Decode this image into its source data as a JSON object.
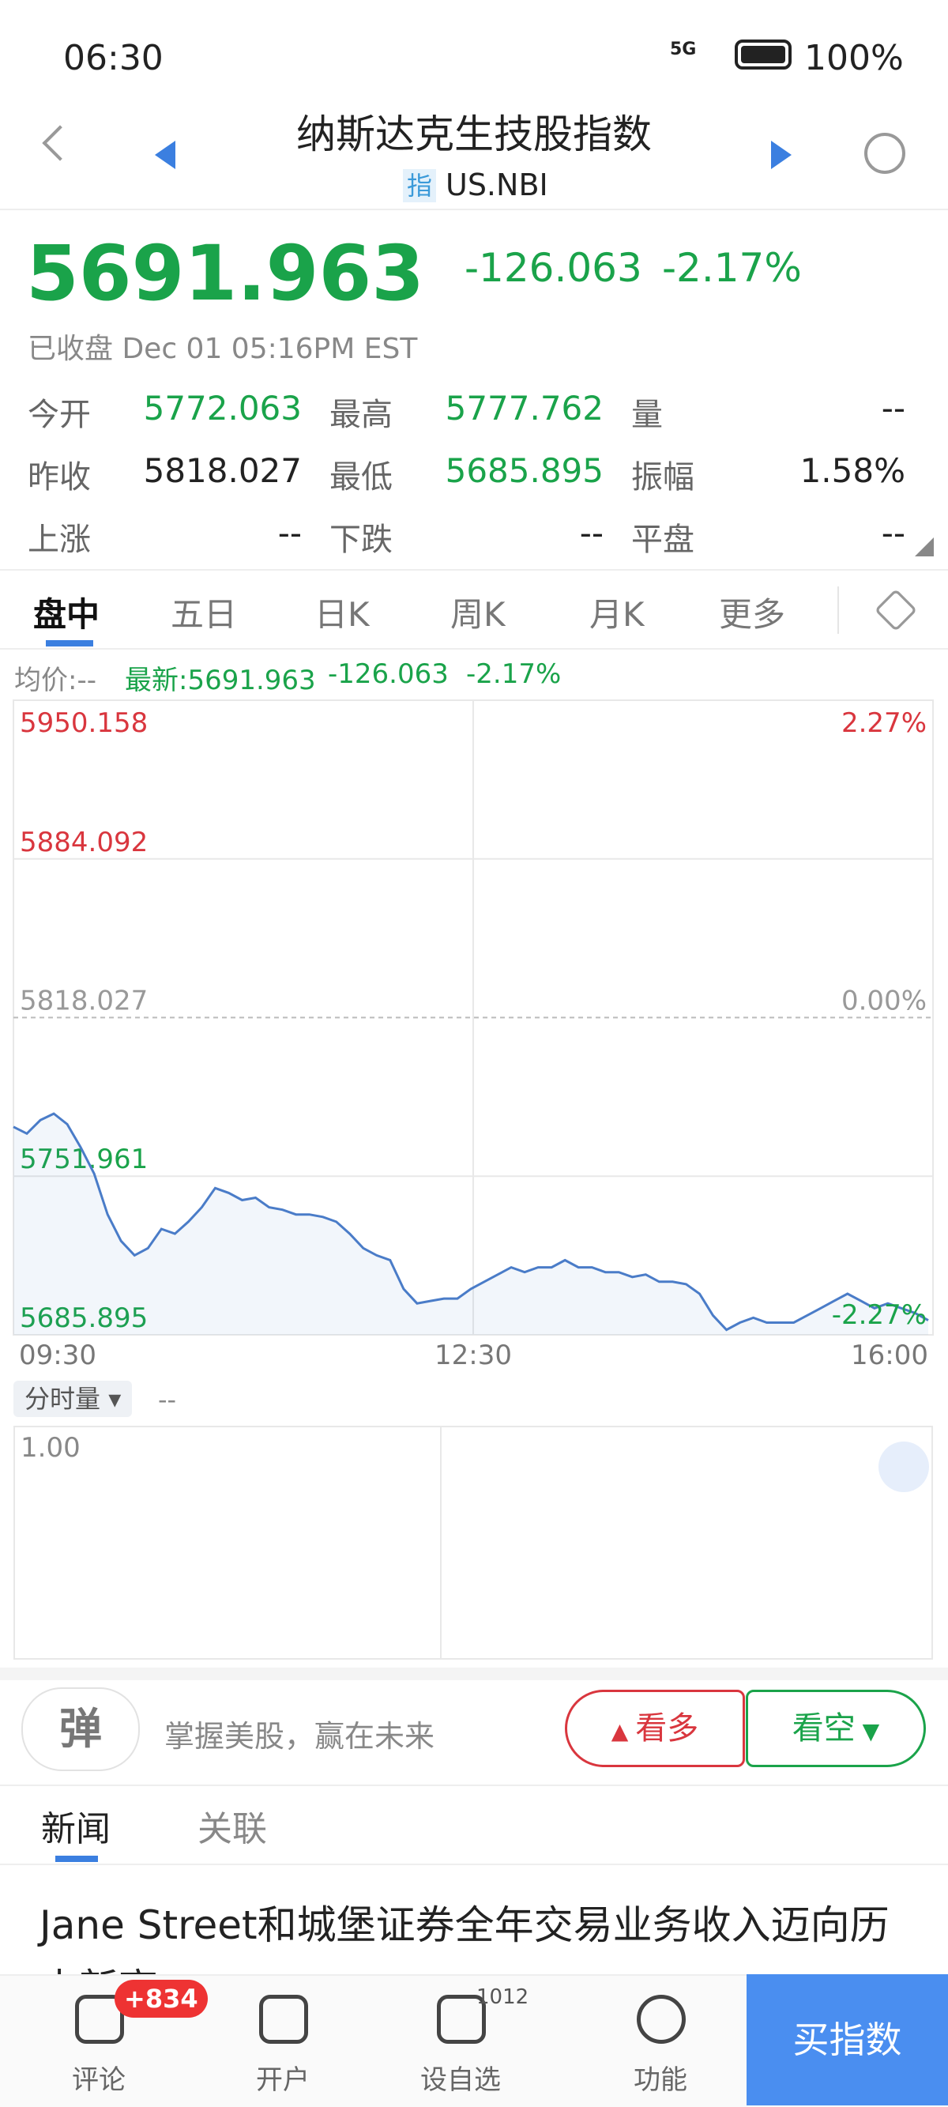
{
  "status_bar": {
    "time": "06:30",
    "network": "5G",
    "battery": "100%"
  },
  "header": {
    "title": "纳斯达克生技股指数",
    "badge": "指",
    "symbol": "US.NBI"
  },
  "quote": {
    "price": "5691.963",
    "change": "-126.063",
    "change_percent": "-2.17%",
    "status": "已收盘 Dec 01 05:16PM EST"
  },
  "stats": [
    [
      {
        "label": "今开",
        "value": "5772.063"
      },
      {
        "label": "最高",
        "value": "5777.762"
      },
      {
        "label": "量",
        "value": "--"
      }
    ],
    [
      {
        "label": "昨收",
        "value": "5818.027"
      },
      {
        "label": "最低",
        "value": "5685.895"
      },
      {
        "label": "振幅",
        "value": "1.58%"
      }
    ],
    [
      {
        "label": "上涨",
        "value": "--"
      },
      {
        "label": "下跌",
        "value": "--"
      },
      {
        "label": "平盘",
        "value": "--"
      }
    ]
  ],
  "tabs": [
    "盘中",
    "五日",
    "日K",
    "周K",
    "月K",
    "更多"
  ],
  "latest_bar": {
    "avg": "均价:--",
    "latest": "最新:5691.963",
    "change": "-126.063",
    "change_percent": "-2.17%"
  },
  "intraday": {
    "left_labels": [
      5950.158,
      5884.092,
      5818.027,
      5751.961,
      5685.895
    ],
    "right_labels": [
      "2.27%",
      "0.00%",
      "-2.27%"
    ],
    "times": [
      "09:30",
      "12:30",
      "16:00"
    ],
    "values": [
      5772.5,
      5769.7,
      5775.3,
      5778,
      5773.6,
      5764,
      5753,
      5736,
      5725,
      5719,
      5722,
      5730,
      5728,
      5733,
      5739,
      5747,
      5745,
      5742,
      5743,
      5739,
      5738,
      5736,
      5736,
      5735,
      5733,
      5728,
      5722,
      5719,
      5717,
      5705,
      5699,
      5700,
      5701,
      5701,
      5705,
      5708,
      5711,
      5714,
      5712,
      5714,
      5714,
      5717,
      5714,
      5714,
      5712,
      5712,
      5710,
      5711,
      5708,
      5708,
      5707,
      5703,
      5694,
      5688,
      5691,
      5693,
      5691,
      5691,
      5691,
      5694,
      5697,
      5700,
      5703,
      5700,
      5697,
      5699,
      5697,
      5695,
      5691.963
    ]
  },
  "volume": {
    "selector": "分时量",
    "value": "--",
    "scale": "1.00"
  },
  "sentiment": {
    "icon": "弹",
    "prompt": "掌握美股，赢在未来",
    "bull": "看多",
    "bear": "看空"
  },
  "news_tabs": [
    "新闻",
    "关联"
  ],
  "news": [
    {
      "title": "Jane Street和城堡证券全年交易业务收入迈向历史新高"
    }
  ],
  "bottom_nav": {
    "items": [
      {
        "label": "评论",
        "badge": "+834"
      },
      {
        "label": "开户"
      },
      {
        "label": "设自选",
        "badge": "1012"
      },
      {
        "label": "功能"
      }
    ],
    "buy": "买指数"
  }
}
